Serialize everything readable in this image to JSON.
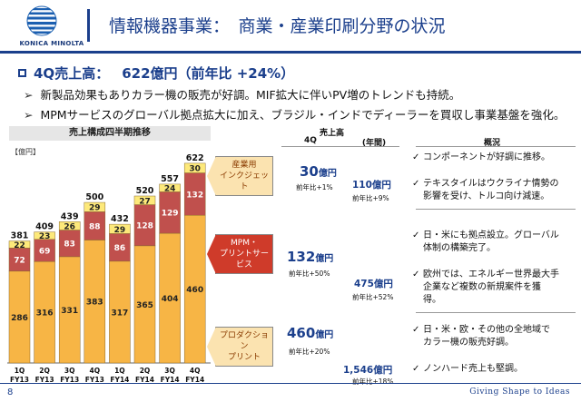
{
  "brand": {
    "name": "KONICA MINOLTA",
    "tagline": "Giving Shape to Ideas"
  },
  "title": "情報機器事業：　商業・産業印刷分野の状況",
  "headline": {
    "label": "4Q売上高：",
    "value": "622億円（前年比 +24%）"
  },
  "bullets": [
    "新製品効果もありカラー機の販売が好調。MIF拡大に伴いPV増のトレンドも持続。",
    "MPMサービスのグローバル拠点拡大に加え、ブラジル・インドでディーラーを買収し事業基盤を強化。"
  ],
  "chart": {
    "title": "売上構成四半期推移",
    "unit": "【億円】",
    "colors": {
      "bottom": "#f7b545",
      "middle": "#c0504d",
      "top": "#fde97a"
    }
  },
  "chart_data": {
    "type": "bar",
    "stacked": true,
    "categories": [
      "1Q FY13",
      "2Q FY13",
      "3Q FY13",
      "4Q FY13",
      "1Q FY14",
      "2Q FY14",
      "3Q FY14",
      "4Q FY14"
    ],
    "category_lines": [
      [
        "1Q",
        "FY13"
      ],
      [
        "2Q",
        "FY13"
      ],
      [
        "3Q",
        "FY13"
      ],
      [
        "4Q",
        "FY13"
      ],
      [
        "1Q",
        "FY14"
      ],
      [
        "2Q",
        "FY14"
      ],
      [
        "3Q",
        "FY14"
      ],
      [
        "4Q",
        "FY14"
      ]
    ],
    "series": [
      {
        "values": [
          286,
          316,
          331,
          383,
          317,
          365,
          404,
          460
        ]
      },
      {
        "values": [
          72,
          69,
          83,
          88,
          86,
          128,
          129,
          132
        ]
      },
      {
        "values": [
          22,
          23,
          26,
          29,
          29,
          27,
          24,
          30
        ]
      }
    ],
    "totals": [
      381,
      409,
      439,
      500,
      432,
      520,
      557,
      622
    ],
    "ylim": [
      0,
      650
    ]
  },
  "table": {
    "header_sales": "売上高",
    "header_q": "4Q",
    "header_year": "(年間)",
    "header_comment": "概況",
    "rows": [
      {
        "segment_lines": [
          "産業用",
          "インクジェット"
        ],
        "q_value": "30",
        "q_unit": "億円",
        "q_change": "前年比+1%",
        "y_value": "110億円",
        "y_change": "前年比+9%",
        "comments": [
          [
            "コンポーネントが好調に推移。"
          ],
          [
            "テキスタイルはウクライナ情勢の",
            "影響を受け、トルコ向け減速。"
          ]
        ]
      },
      {
        "segment_lines": [
          "MPM・",
          "プリントサービス"
        ],
        "q_value": "132",
        "q_unit": "億円",
        "q_change": "前年比+50%",
        "y_value": "475億円",
        "y_change": "前年比+52%",
        "comments": [
          [
            "日・米にも拠点設立。グローバル",
            "体制の構築完了。"
          ],
          [
            "欧州では、エネルギー世界最大手",
            "企業など複数の新規案件を獲",
            "得。"
          ]
        ]
      },
      {
        "segment_lines": [
          "プロダクション",
          "プリント"
        ],
        "q_value": "460",
        "q_unit": "億円",
        "q_change": "前年比+20%",
        "y_value": "1,546億円",
        "y_change": "前年比+18%",
        "comments": [
          [
            "日・米・欧・その他の全地域で",
            "カラー機の販売好調。"
          ],
          [
            "ノンハード売上も堅調。"
          ]
        ]
      }
    ]
  },
  "page_number": "8"
}
